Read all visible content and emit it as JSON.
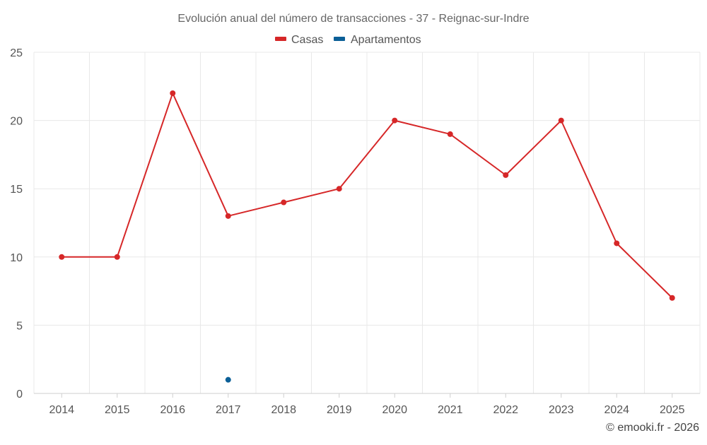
{
  "chart_data": {
    "type": "line",
    "title": "Evolución anual del número de transacciones - 37 - Reignac-sur-Indre",
    "categories": [
      "2014",
      "2015",
      "2016",
      "2017",
      "2018",
      "2019",
      "2020",
      "2021",
      "2022",
      "2023",
      "2024",
      "2025"
    ],
    "series": [
      {
        "name": "Casas",
        "color": "#d62728",
        "values": [
          10,
          10,
          22,
          13,
          14,
          15,
          20,
          19,
          16,
          20,
          11,
          7
        ]
      },
      {
        "name": "Apartamentos",
        "color": "#0b5f97",
        "values": [
          null,
          null,
          null,
          1,
          null,
          null,
          null,
          null,
          null,
          null,
          null,
          null
        ]
      }
    ],
    "ylim": [
      0,
      25
    ],
    "yticks": [
      0,
      5,
      10,
      15,
      20,
      25
    ],
    "xlabel": "",
    "ylabel": "",
    "grid": true,
    "legend": "top-center"
  },
  "credit": "© emooki.fr - 2026"
}
